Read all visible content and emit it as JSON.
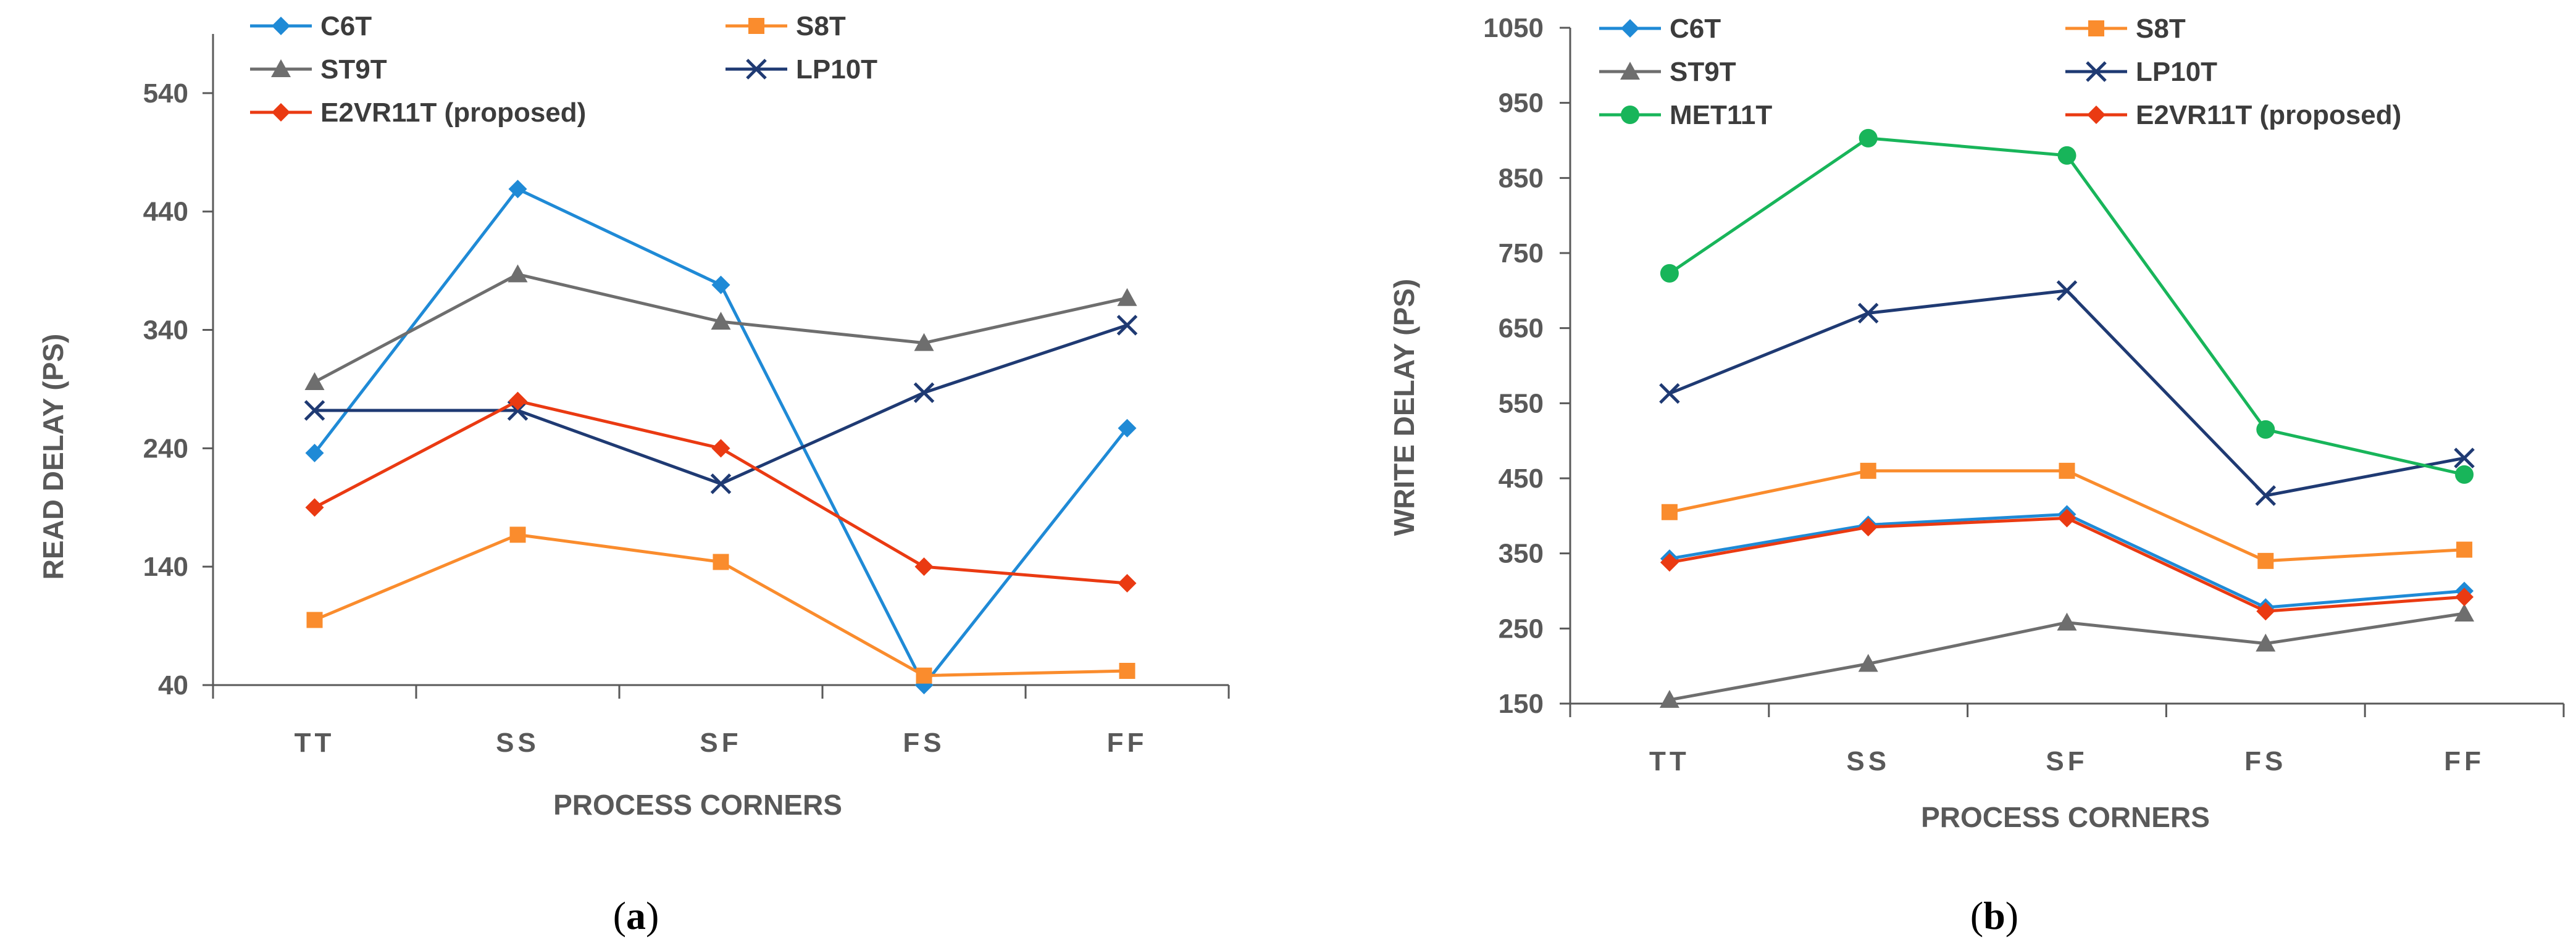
{
  "chart_data": [
    {
      "type": "line",
      "panel_label": "(a)",
      "panel_letter": "a",
      "xlabel": "PROCESS CORNERS",
      "ylabel": "READ DELAY (PS)",
      "categories": [
        "TT",
        "SS",
        "SF",
        "FS",
        "FF"
      ],
      "ylim": [
        40,
        590
      ],
      "yticks": [
        40,
        140,
        240,
        340,
        440,
        540
      ],
      "grid": false,
      "legend": "top",
      "series": [
        {
          "name": "C6T",
          "color": "#1f8ad6",
          "marker": "diamond",
          "values": [
            236,
            459,
            378,
            40,
            257
          ]
        },
        {
          "name": "S8T",
          "color": "#fa8c2d",
          "marker": "square",
          "values": [
            95,
            167,
            144,
            48,
            52
          ]
        },
        {
          "name": "ST9T",
          "color": "#6e6e6e",
          "marker": "triangle",
          "values": [
            296,
            387,
            347,
            329,
            367
          ]
        },
        {
          "name": "LP10T",
          "color": "#1f3a73",
          "marker": "x",
          "values": [
            272,
            272,
            210,
            287,
            344
          ]
        },
        {
          "name": "E2VR11T (proposed)",
          "color": "#ea3a12",
          "marker": "diamond",
          "values": [
            190,
            280,
            240,
            140,
            126
          ]
        }
      ]
    },
    {
      "type": "line",
      "panel_label": "(b)",
      "panel_letter": "b",
      "xlabel": "PROCESS CORNERS",
      "ylabel": "WRITE DELAY (PS)",
      "categories": [
        "TT",
        "SS",
        "SF",
        "FS",
        "FF"
      ],
      "ylim": [
        150,
        1050
      ],
      "yticks": [
        150,
        250,
        350,
        450,
        550,
        650,
        750,
        850,
        950,
        1050
      ],
      "grid": false,
      "legend": "top",
      "series": [
        {
          "name": "C6T",
          "color": "#1f8ad6",
          "marker": "diamond",
          "values": [
            343,
            388,
            402,
            278,
            300
          ]
        },
        {
          "name": "S8T",
          "color": "#fa8c2d",
          "marker": "square",
          "values": [
            405,
            460,
            460,
            340,
            355
          ]
        },
        {
          "name": "ST9T",
          "color": "#6e6e6e",
          "marker": "triangle",
          "values": [
            155,
            203,
            258,
            230,
            270
          ]
        },
        {
          "name": "LP10T",
          "color": "#1f3a73",
          "marker": "x",
          "values": [
            563,
            670,
            700,
            427,
            477
          ]
        },
        {
          "name": "MET11T",
          "color": "#18b55a",
          "marker": "circle",
          "values": [
            723,
            903,
            880,
            515,
            455
          ]
        },
        {
          "name": "E2VR11T (proposed)",
          "color": "#ea3a12",
          "marker": "diamond",
          "values": [
            338,
            385,
            397,
            273,
            292
          ]
        }
      ]
    }
  ]
}
